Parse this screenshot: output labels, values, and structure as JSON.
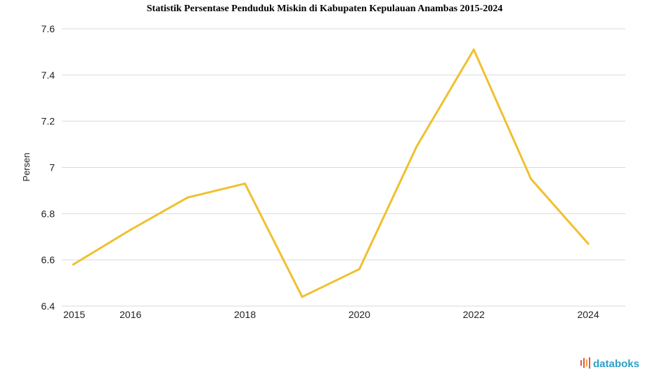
{
  "chart_data": {
    "type": "line",
    "title": "Statistik Persentase Penduduk Miskin di Kabupaten Kepulauan Anambas 2015-2024",
    "xlabel": "",
    "ylabel": "Persen",
    "x": [
      2015,
      2016,
      2017,
      2018,
      2019,
      2020,
      2021,
      2022,
      2023,
      2024
    ],
    "x_tick_labels": [
      "2015",
      "2016",
      "2018",
      "2020",
      "2022",
      "2024"
    ],
    "y_tick_labels": [
      "6.4",
      "6.6",
      "6.8",
      "7",
      "7.2",
      "7.4",
      "7.6"
    ],
    "y_ticks": [
      6.4,
      6.6,
      6.8,
      7.0,
      7.2,
      7.4,
      7.6
    ],
    "ylim": [
      6.4,
      7.6
    ],
    "grid": true,
    "series": [
      {
        "values": [
          6.58,
          6.73,
          6.87,
          6.93,
          6.44,
          6.56,
          7.09,
          7.51,
          6.95,
          6.67
        ],
        "color": "#f0c02f"
      }
    ]
  },
  "branding": {
    "logo_text": "databoks",
    "logo_color": "#2f9fc6",
    "logo_accent": "#e8553e"
  }
}
